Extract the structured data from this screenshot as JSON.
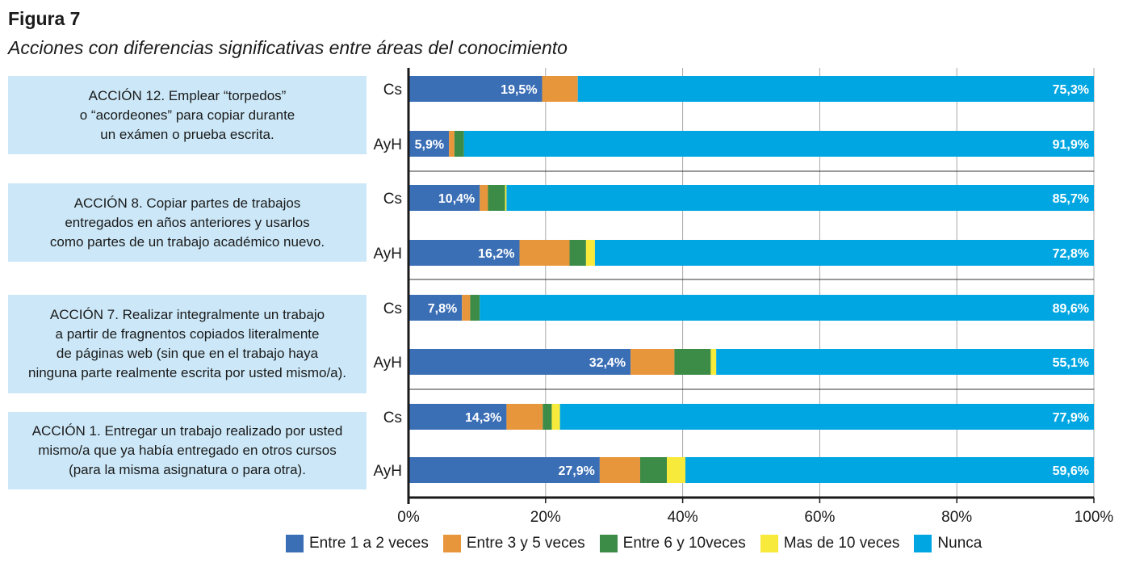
{
  "figure_label": "Figura 7",
  "figure_title": "Acciones con diferencias significativas entre áreas del conocimiento",
  "actions": [
    {
      "text": "ACCIÓN 12. Emplear “torpedos”\no “acordeones” para copiar durante\nun exámen o prueba escrita."
    },
    {
      "text": "ACCIÓN 8. Copiar partes de trabajos\nentregados en años anteriores y usarlos\ncomo partes de un trabajo académico nuevo."
    },
    {
      "text": "ACCIÓN 7. Realizar integralmente un trabajo\na partir de fragnentos copiados literalmente\nde páginas web (sin que en el trabajo haya\nninguna parte realmente escrita por usted mismo/a)."
    },
    {
      "text": "ACCIÓN 1. Entregar un trabajo realizado por usted\nmismo/a que ya había entregado en otros cursos\n(para la misma asignatura o para otra)."
    }
  ],
  "chart_data": {
    "type": "bar",
    "orientation": "horizontal",
    "stacked": true,
    "percent": true,
    "categories": [
      "Cs",
      "AyH",
      "Cs",
      "AyH",
      "Cs",
      "AyH",
      "Cs",
      "AyH"
    ],
    "series": [
      {
        "name": "Entre 1 a 2 veces",
        "color": "#3a6eb5",
        "values": [
          19.5,
          5.9,
          10.4,
          16.2,
          7.8,
          32.4,
          14.3,
          27.9
        ],
        "labels": [
          "19,5%",
          "5,9%",
          "10,4%",
          "16,2%",
          "7,8%",
          "32,4%",
          "14,3%",
          "27,9%"
        ]
      },
      {
        "name": "Entre 3 y 5 veces",
        "color": "#e8963c",
        "values": [
          5.2,
          0.8,
          1.2,
          7.3,
          1.2,
          6.4,
          5.3,
          5.9
        ]
      },
      {
        "name": "Entre 6 y 10veces",
        "color": "#3c8c48",
        "values": [
          0.0,
          1.4,
          2.5,
          2.4,
          1.4,
          5.3,
          1.3,
          3.9
        ]
      },
      {
        "name": "Mas de 10 veces",
        "color": "#f8ea3a",
        "values": [
          0.0,
          0.0,
          0.2,
          1.3,
          0.0,
          0.8,
          1.2,
          2.7
        ]
      },
      {
        "name": "Nunca",
        "color": "#00a6e2",
        "values": [
          75.3,
          91.9,
          85.7,
          72.8,
          89.6,
          55.1,
          77.9,
          59.6
        ],
        "labels": [
          "75,3%",
          "91,9%",
          "85,7%",
          "72,8%",
          "89,6%",
          "55,1%",
          "77,9%",
          "59,6%"
        ]
      }
    ],
    "x_ticks": [
      "0%",
      "20%",
      "40%",
      "60%",
      "80%",
      "100%"
    ],
    "xlim": [
      0,
      100
    ],
    "grid": true,
    "legend_position": "bottom"
  }
}
